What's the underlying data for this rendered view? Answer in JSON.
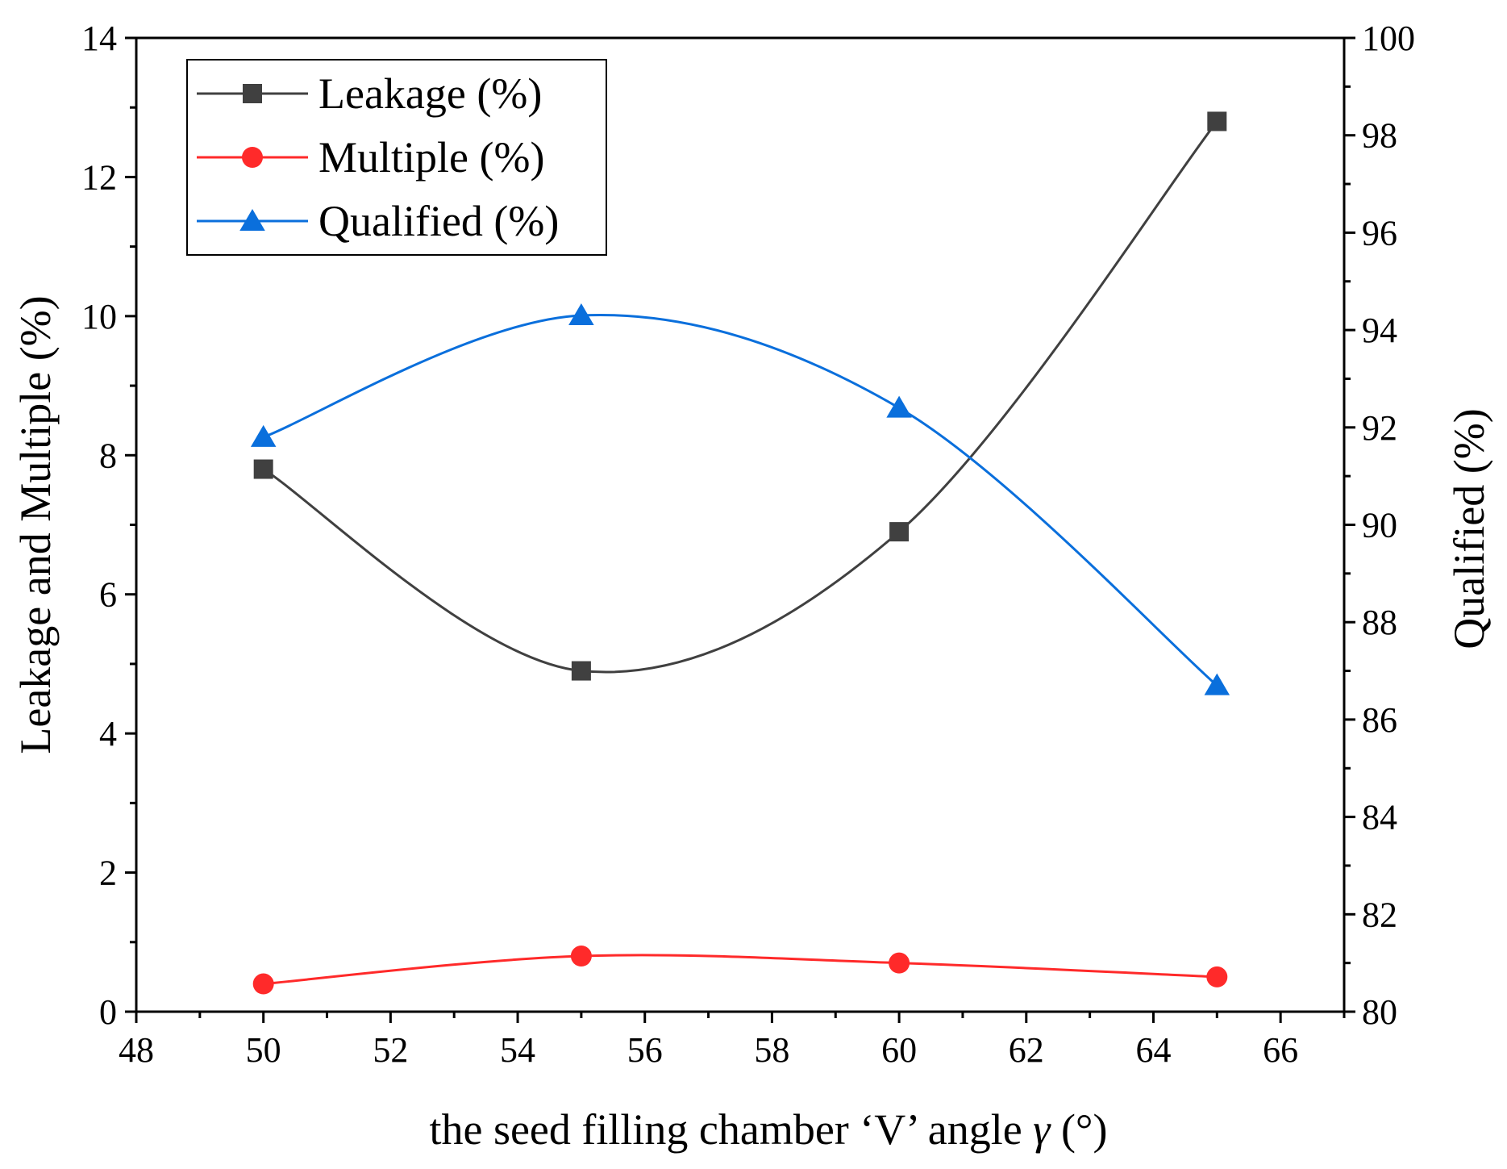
{
  "chart_data": {
    "type": "line",
    "x": [
      50,
      55,
      60,
      65
    ],
    "series": [
      {
        "name": "Leakage (%)",
        "axis": "left",
        "marker": "square",
        "color": "#404040",
        "values": [
          7.8,
          4.9,
          6.9,
          12.8
        ]
      },
      {
        "name": "Multiple (%)",
        "axis": "left",
        "marker": "circle",
        "color": "#ff2a2a",
        "values": [
          0.4,
          0.8,
          0.7,
          0.5
        ]
      },
      {
        "name": "Qualified (%)",
        "axis": "right",
        "marker": "triangle",
        "color": "#0a6fdc",
        "values": [
          91.8,
          94.3,
          92.4,
          86.7
        ]
      }
    ],
    "xlabel_prefix": "the seed filling chamber ‘V’ angle ",
    "xlabel_symbol": "γ",
    "xlabel_suffix": " (°)",
    "ylabel_left": "Leakage and Multiple (%)",
    "ylabel_right": "Qualified (%)",
    "xlim": [
      48,
      67
    ],
    "ylim_left": [
      0,
      14
    ],
    "ylim_right": [
      80,
      100
    ],
    "xticks": [
      "48",
      "50",
      "52",
      "54",
      "56",
      "58",
      "60",
      "62",
      "64",
      "66"
    ],
    "yticks_left": [
      "0",
      "2",
      "4",
      "6",
      "8",
      "10",
      "12",
      "14"
    ],
    "yticks_right": [
      "80",
      "82",
      "84",
      "86",
      "88",
      "90",
      "92",
      "94",
      "96",
      "98",
      "100"
    ],
    "legend_position": "top-left",
    "grid": false
  }
}
